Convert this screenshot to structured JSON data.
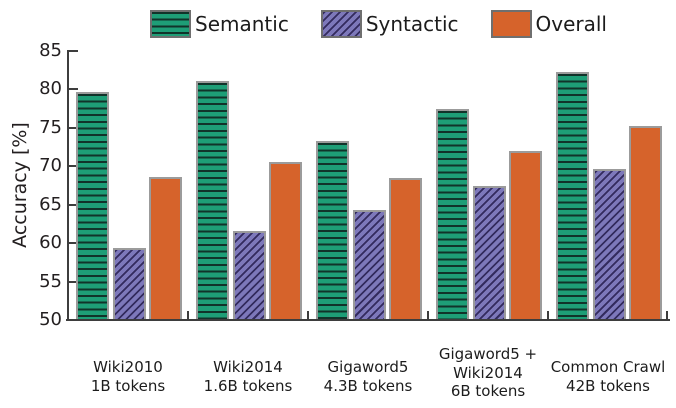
{
  "chart_data": {
    "type": "bar",
    "title": "",
    "xlabel": "",
    "ylabel": "Accuracy [%]",
    "ylim": [
      50,
      85
    ],
    "yticks": [
      50,
      55,
      60,
      65,
      70,
      75,
      80,
      85
    ],
    "grid": false,
    "legend_position": "top",
    "categories": [
      [
        "Wiki2010",
        "1B tokens"
      ],
      [
        "Wiki2014",
        "1.6B tokens"
      ],
      [
        "Gigaword5",
        "4.3B tokens"
      ],
      [
        "Gigaword5 +",
        "Wiki2014",
        "6B tokens"
      ],
      [
        "Common Crawl",
        "42B tokens"
      ]
    ],
    "series": [
      {
        "name": "Semantic",
        "pattern": "semantic",
        "color": "#1e9e77",
        "values": [
          79.6,
          81.0,
          73.2,
          77.3,
          82.1
        ]
      },
      {
        "name": "Syntactic",
        "pattern": "syntactic",
        "color": "#7d78ba",
        "values": [
          59.3,
          61.5,
          64.2,
          67.3,
          69.5
        ]
      },
      {
        "name": "Overall",
        "pattern": "overall",
        "color": "#d6632b",
        "values": [
          68.5,
          70.4,
          68.3,
          71.8,
          75.1
        ]
      }
    ],
    "axis_color": "#3d3d3d"
  }
}
